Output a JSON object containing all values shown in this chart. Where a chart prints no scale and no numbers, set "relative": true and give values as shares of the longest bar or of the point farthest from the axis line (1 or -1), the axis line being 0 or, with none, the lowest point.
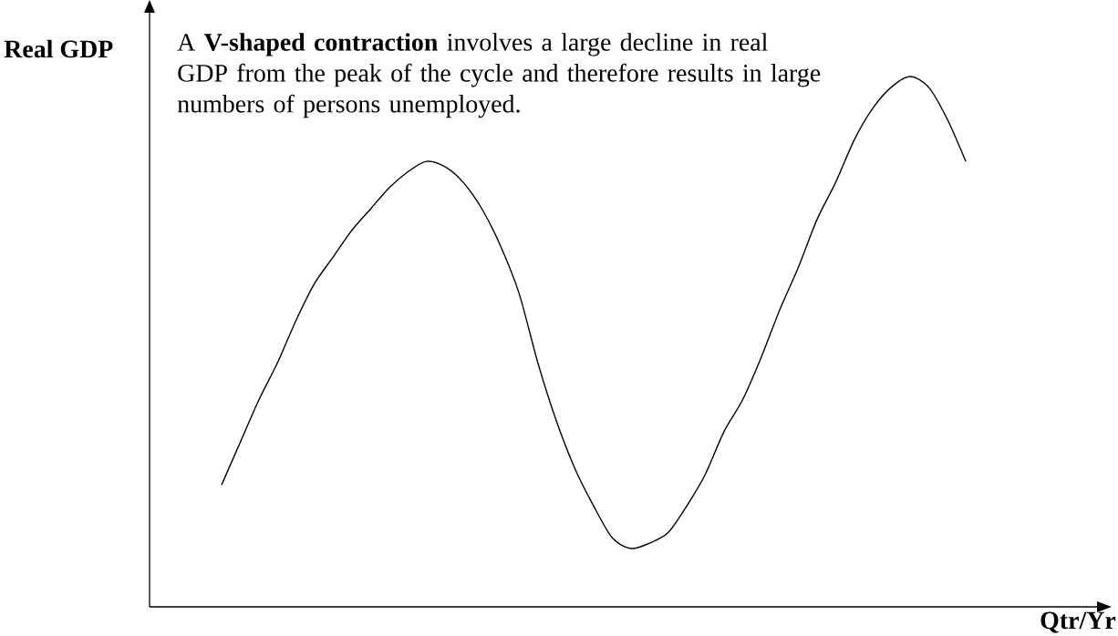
{
  "chart_data": {
    "type": "line",
    "relative": true,
    "xlabel": "Qtr/Yr",
    "ylabel": "Real GDP",
    "annotations": [
      "A **V-shaped contraction** involves a large decline in real GDP from the peak of the cycle and therefore results in large numbers of persons unemployed."
    ],
    "categories": [
      null,
      null,
      null,
      null,
      null,
      null,
      null,
      null,
      null,
      null,
      null,
      null,
      null,
      null,
      null,
      null,
      null,
      null,
      null,
      null,
      null,
      null,
      null,
      null,
      null,
      null,
      null,
      null,
      null,
      null,
      null,
      null,
      null,
      null,
      null,
      null,
      null,
      null,
      null,
      null,
      null
    ],
    "series": [
      {
        "color": "#000000",
        "values": [
          0.23,
          0.31,
          0.39,
          0.46,
          0.54,
          0.61,
          0.66,
          0.71,
          0.75,
          0.79,
          0.82,
          0.84,
          0.83,
          0.8,
          0.75,
          0.68,
          0.59,
          0.46,
          0.35,
          0.26,
          0.19,
          0.13,
          0.11,
          0.12,
          0.14,
          0.19,
          0.25,
          0.33,
          0.39,
          0.47,
          0.56,
          0.64,
          0.73,
          0.8,
          0.88,
          0.94,
          0.98,
          1.0,
          0.98,
          0.92,
          0.84
        ]
      }
    ]
  }
}
